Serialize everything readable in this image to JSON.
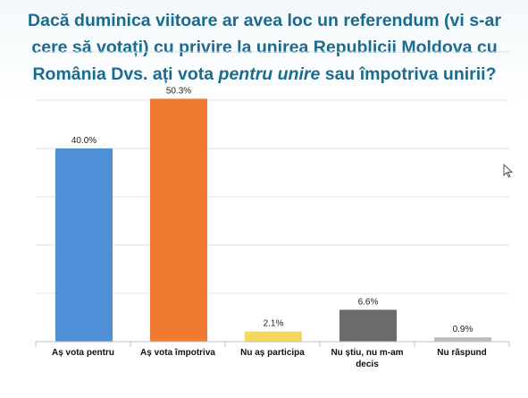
{
  "title": {
    "line1": "Dacă duminica viitoare ar avea loc un referendum (vi s-ar",
    "line2": "cere să votați) cu privire la unirea Republicii Moldova cu",
    "line3_pre": "România Dvs. ați vota ",
    "line3_em": "pentru unire",
    "line3_post": "  sau împotriva unirii?"
  },
  "chart_data": {
    "type": "bar",
    "title": "Dacă duminica viitoare ar avea loc un referendum (vi s-ar cere să votați) cu privire la unirea Republicii Moldova cu România Dvs. ați vota pentru unire sau împotriva unirii?",
    "categories": [
      [
        "Aș vota pentru"
      ],
      [
        "Aș vota împotriva"
      ],
      [
        "Nu aș participa"
      ],
      [
        "Nu știu, nu m-am",
        "decis"
      ],
      [
        "Nu răspund"
      ]
    ],
    "values": [
      40.0,
      50.3,
      2.1,
      6.6,
      0.9
    ],
    "value_labels": [
      "40.0%",
      "50.3%",
      "2.1%",
      "6.6%",
      "0.9%"
    ],
    "colors": [
      "#4e8fd8",
      "#f07a31",
      "#f5d75c",
      "#6d6a6b",
      "#bdbdbd"
    ],
    "xlabel": "",
    "ylabel": "",
    "ylim": [
      0,
      60
    ],
    "grid": true,
    "gridline_values": [
      10,
      20,
      30,
      40,
      50,
      60
    ],
    "gridline_color": "#e0e0e0"
  }
}
